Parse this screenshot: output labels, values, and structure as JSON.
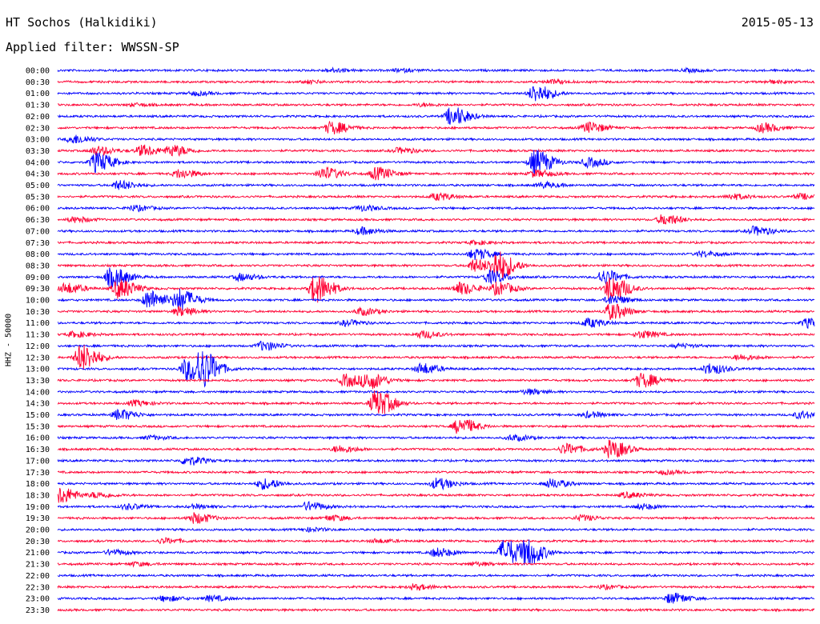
{
  "header": {
    "station": "HT Sochos (Halkidiki)",
    "date": "2015-05-13",
    "filter": "Applied filter: WWSSN-SP"
  },
  "chart_data": {
    "type": "line",
    "ylabel": "HHZ - 50000",
    "colors": {
      "even": "#0000ff",
      "odd": "#ff0033"
    },
    "traces": [
      {
        "label": "00:00",
        "events": [
          [
            36,
            0.2
          ],
          [
            45,
            0.15
          ],
          [
            83,
            0.15
          ]
        ]
      },
      {
        "label": "00:30",
        "events": [
          [
            33,
            0.15
          ],
          [
            65,
            0.2
          ],
          [
            94,
            0.15
          ]
        ]
      },
      {
        "label": "01:00",
        "events": [
          [
            18,
            0.2
          ],
          [
            63,
            1.0
          ]
        ]
      },
      {
        "label": "01:30",
        "events": [
          [
            10,
            0.15
          ],
          [
            48,
            0.15
          ]
        ]
      },
      {
        "label": "02:00",
        "events": [
          [
            52,
            1.1
          ]
        ]
      },
      {
        "label": "02:30",
        "events": [
          [
            36,
            0.7
          ],
          [
            70,
            0.6
          ],
          [
            93,
            0.5
          ]
        ]
      },
      {
        "label": "03:00",
        "events": [
          [
            2,
            0.5
          ]
        ]
      },
      {
        "label": "03:30",
        "events": [
          [
            5,
            0.5
          ],
          [
            11,
            0.6
          ],
          [
            15,
            0.6
          ],
          [
            45,
            0.3
          ]
        ]
      },
      {
        "label": "04:00",
        "events": [
          [
            5,
            1.1
          ],
          [
            63,
            1.4
          ],
          [
            70,
            0.5
          ]
        ]
      },
      {
        "label": "04:30",
        "events": [
          [
            16,
            0.5
          ],
          [
            35,
            0.7
          ],
          [
            42,
            0.7
          ],
          [
            63,
            0.4
          ]
        ]
      },
      {
        "label": "05:00",
        "events": [
          [
            8,
            0.5
          ],
          [
            64,
            0.3
          ]
        ]
      },
      {
        "label": "05:30",
        "events": [
          [
            50,
            0.4
          ],
          [
            89,
            0.3
          ],
          [
            98,
            0.3
          ]
        ]
      },
      {
        "label": "06:00",
        "events": [
          [
            10,
            0.3
          ],
          [
            40,
            0.3
          ]
        ]
      },
      {
        "label": "06:30",
        "events": [
          [
            2,
            0.3
          ],
          [
            80,
            0.6
          ]
        ]
      },
      {
        "label": "07:00",
        "events": [
          [
            40,
            0.4
          ],
          [
            92,
            0.5
          ]
        ]
      },
      {
        "label": "07:30",
        "events": [
          [
            55,
            0.2
          ]
        ]
      },
      {
        "label": "08:00",
        "events": [
          [
            55,
            0.6
          ],
          [
            85,
            0.3
          ]
        ]
      },
      {
        "label": "08:30",
        "events": [
          [
            55,
            0.7
          ],
          [
            58,
            1.6
          ]
        ]
      },
      {
        "label": "09:00",
        "events": [
          [
            7,
            1.1
          ],
          [
            24,
            0.4
          ],
          [
            57,
            0.7
          ],
          [
            72,
            0.8
          ]
        ]
      },
      {
        "label": "09:30",
        "events": [
          [
            1,
            0.6
          ],
          [
            8,
            1.1
          ],
          [
            34,
            1.6
          ],
          [
            53,
            0.7
          ],
          [
            58,
            0.7
          ],
          [
            73,
            1.5
          ]
        ]
      },
      {
        "label": "10:00",
        "events": [
          [
            12,
            1.1
          ],
          [
            16,
            1.2
          ],
          [
            73,
            0.5
          ]
        ]
      },
      {
        "label": "10:30",
        "events": [
          [
            16,
            0.5
          ],
          [
            40,
            0.4
          ],
          [
            73,
            0.9
          ]
        ]
      },
      {
        "label": "11:00",
        "events": [
          [
            38,
            0.3
          ],
          [
            70,
            0.5
          ],
          [
            99,
            0.5
          ]
        ]
      },
      {
        "label": "11:30",
        "events": [
          [
            2,
            0.3
          ],
          [
            48,
            0.4
          ],
          [
            77,
            0.4
          ]
        ]
      },
      {
        "label": "12:00",
        "events": [
          [
            27,
            0.5
          ],
          [
            82,
            0.2
          ]
        ]
      },
      {
        "label": "12:30",
        "events": [
          [
            3,
            1.5
          ],
          [
            90,
            0.3
          ]
        ]
      },
      {
        "label": "13:00",
        "events": [
          [
            17,
            1.3
          ],
          [
            19,
            1.8
          ],
          [
            48,
            0.6
          ],
          [
            86,
            0.6
          ]
        ]
      },
      {
        "label": "13:30",
        "events": [
          [
            38,
            0.7
          ],
          [
            41,
            0.9
          ],
          [
            77,
            0.8
          ]
        ]
      },
      {
        "label": "14:00",
        "events": [
          [
            62,
            0.3
          ]
        ]
      },
      {
        "label": "14:30",
        "events": [
          [
            10,
            0.3
          ],
          [
            42,
            1.5
          ]
        ]
      },
      {
        "label": "15:00",
        "events": [
          [
            8,
            0.6
          ],
          [
            70,
            0.3
          ],
          [
            98,
            0.4
          ]
        ]
      },
      {
        "label": "15:30",
        "events": [
          [
            53,
            0.9
          ]
        ]
      },
      {
        "label": "16:00",
        "events": [
          [
            12,
            0.2
          ],
          [
            60,
            0.3
          ]
        ]
      },
      {
        "label": "16:30",
        "events": [
          [
            37,
            0.4
          ],
          [
            67,
            0.6
          ],
          [
            73,
            1.0
          ]
        ]
      },
      {
        "label": "17:00",
        "events": [
          [
            17,
            0.5
          ]
        ]
      },
      {
        "label": "17:30",
        "events": [
          [
            80,
            0.2
          ]
        ]
      },
      {
        "label": "18:00",
        "events": [
          [
            27,
            0.6
          ],
          [
            50,
            0.6
          ],
          [
            65,
            0.5
          ]
        ]
      },
      {
        "label": "18:30",
        "events": [
          [
            0,
            1.0
          ],
          [
            5,
            0.3
          ],
          [
            75,
            0.3
          ]
        ]
      },
      {
        "label": "19:00",
        "events": [
          [
            9,
            0.3
          ],
          [
            18,
            0.2
          ],
          [
            33,
            0.5
          ],
          [
            77,
            0.3
          ]
        ]
      },
      {
        "label": "19:30",
        "events": [
          [
            18,
            0.6
          ],
          [
            36,
            0.3
          ],
          [
            69,
            0.3
          ]
        ]
      },
      {
        "label": "20:00",
        "events": [
          [
            33,
            0.2
          ]
        ]
      },
      {
        "label": "20:30",
        "events": [
          [
            14,
            0.3
          ],
          [
            42,
            0.2
          ]
        ]
      },
      {
        "label": "21:00",
        "events": [
          [
            7,
            0.3
          ],
          [
            50,
            0.5
          ],
          [
            59,
            1.5
          ],
          [
            62,
            1.3
          ]
        ]
      },
      {
        "label": "21:30",
        "events": [
          [
            10,
            0.2
          ],
          [
            55,
            0.2
          ]
        ]
      },
      {
        "label": "22:00",
        "events": []
      },
      {
        "label": "22:30",
        "events": [
          [
            47,
            0.3
          ],
          [
            72,
            0.2
          ]
        ]
      },
      {
        "label": "23:00",
        "events": [
          [
            14,
            0.3
          ],
          [
            20,
            0.3
          ],
          [
            81,
            0.6
          ]
        ]
      },
      {
        "label": "23:30",
        "events": []
      }
    ]
  }
}
